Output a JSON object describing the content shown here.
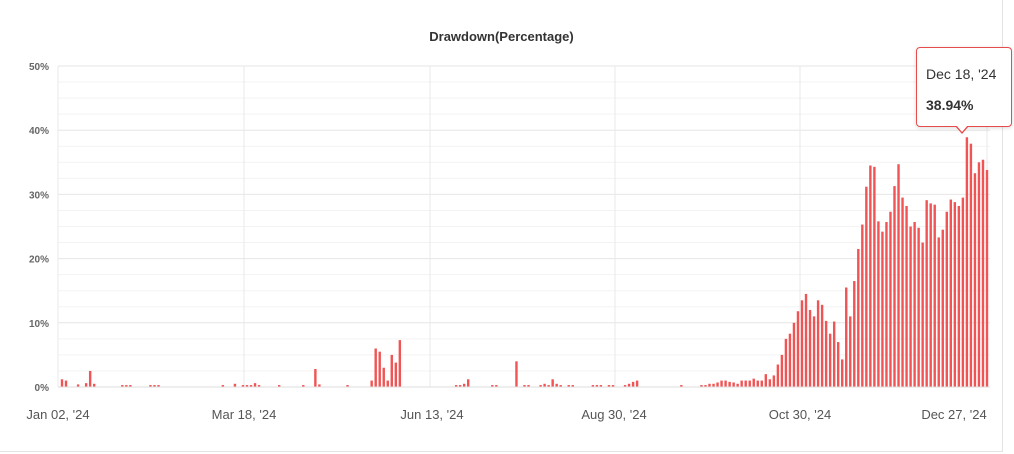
{
  "chart_data": {
    "type": "bar",
    "title": "Drawdown(Percentage)",
    "xlabel": "",
    "ylabel": "",
    "ylim": [
      0,
      50
    ],
    "y_ticks": [
      "0%",
      "10%",
      "20%",
      "30%",
      "40%",
      "50%"
    ],
    "x_tick_labels": [
      "Jan 02, '24",
      "Mar 18, '24",
      "Jun 13, '24",
      "Aug 30, '24",
      "Oct 30, '24",
      "Dec 27, '24"
    ],
    "grid": true,
    "bar_color": "#f05454",
    "values": [
      1.2,
      1.0,
      0,
      0,
      0.4,
      0,
      0.6,
      2.5,
      0.5,
      0,
      0,
      0,
      0,
      0,
      0,
      0.3,
      0.3,
      0.3,
      0,
      0,
      0,
      0,
      0.3,
      0.3,
      0.3,
      0,
      0,
      0,
      0,
      0,
      0,
      0,
      0,
      0,
      0,
      0,
      0,
      0,
      0,
      0,
      0.3,
      0,
      0,
      0.5,
      0,
      0.3,
      0.3,
      0.3,
      0.6,
      0.3,
      0,
      0,
      0,
      0,
      0.3,
      0,
      0,
      0,
      0,
      0,
      0.3,
      0,
      0,
      2.8,
      0.4,
      0,
      0,
      0,
      0,
      0,
      0,
      0.3,
      0,
      0,
      0,
      0,
      0,
      1.0,
      6.0,
      5.5,
      3.0,
      1.0,
      5.0,
      3.8,
      7.3,
      0,
      0,
      0,
      0,
      0,
      0,
      0,
      0,
      0,
      0,
      0,
      0,
      0,
      0.3,
      0.3,
      0.5,
      1.2,
      0,
      0,
      0,
      0,
      0,
      0.3,
      0.3,
      0,
      0,
      0,
      0,
      4.0,
      0,
      0.3,
      0.3,
      0,
      0,
      0.3,
      0.5,
      0.3,
      1.2,
      0.5,
      0.3,
      0,
      0.3,
      0.3,
      0,
      0,
      0,
      0,
      0.3,
      0.3,
      0.3,
      0,
      0.3,
      0.3,
      0,
      0,
      0.3,
      0.5,
      0.8,
      1.0,
      0,
      0,
      0,
      0,
      0,
      0,
      0,
      0,
      0,
      0,
      0.3,
      0,
      0,
      0,
      0,
      0.3,
      0.3,
      0.5,
      0.5,
      0.7,
      1.0,
      1.0,
      0.8,
      0.7,
      0.5,
      1.0,
      1.0,
      1.0,
      1.3,
      1.0,
      1.0,
      2.0,
      1.2,
      1.8,
      3.5,
      5.0,
      7.5,
      8.3,
      10.0,
      11.8,
      13.5,
      14.5,
      12.0,
      11.0,
      13.5,
      12.8,
      10.3,
      8.3,
      10.2,
      7.0,
      4.3,
      15.5,
      11.0,
      16.5,
      21.5,
      25.3,
      31.2,
      34.5,
      34.3,
      25.8,
      24.2,
      25.7,
      27.3,
      31.3,
      34.7,
      29.5,
      28.2,
      25.0,
      25.7,
      24.8,
      22.5,
      29.1,
      28.6,
      28.4,
      23.3,
      24.5,
      27.3,
      29.2,
      28.8,
      28.2,
      29.5,
      38.9,
      37.9,
      33.3,
      35.0,
      35.4,
      33.8
    ]
  },
  "tooltip": {
    "date": "Dec 18, '24",
    "value": "38.94%"
  }
}
